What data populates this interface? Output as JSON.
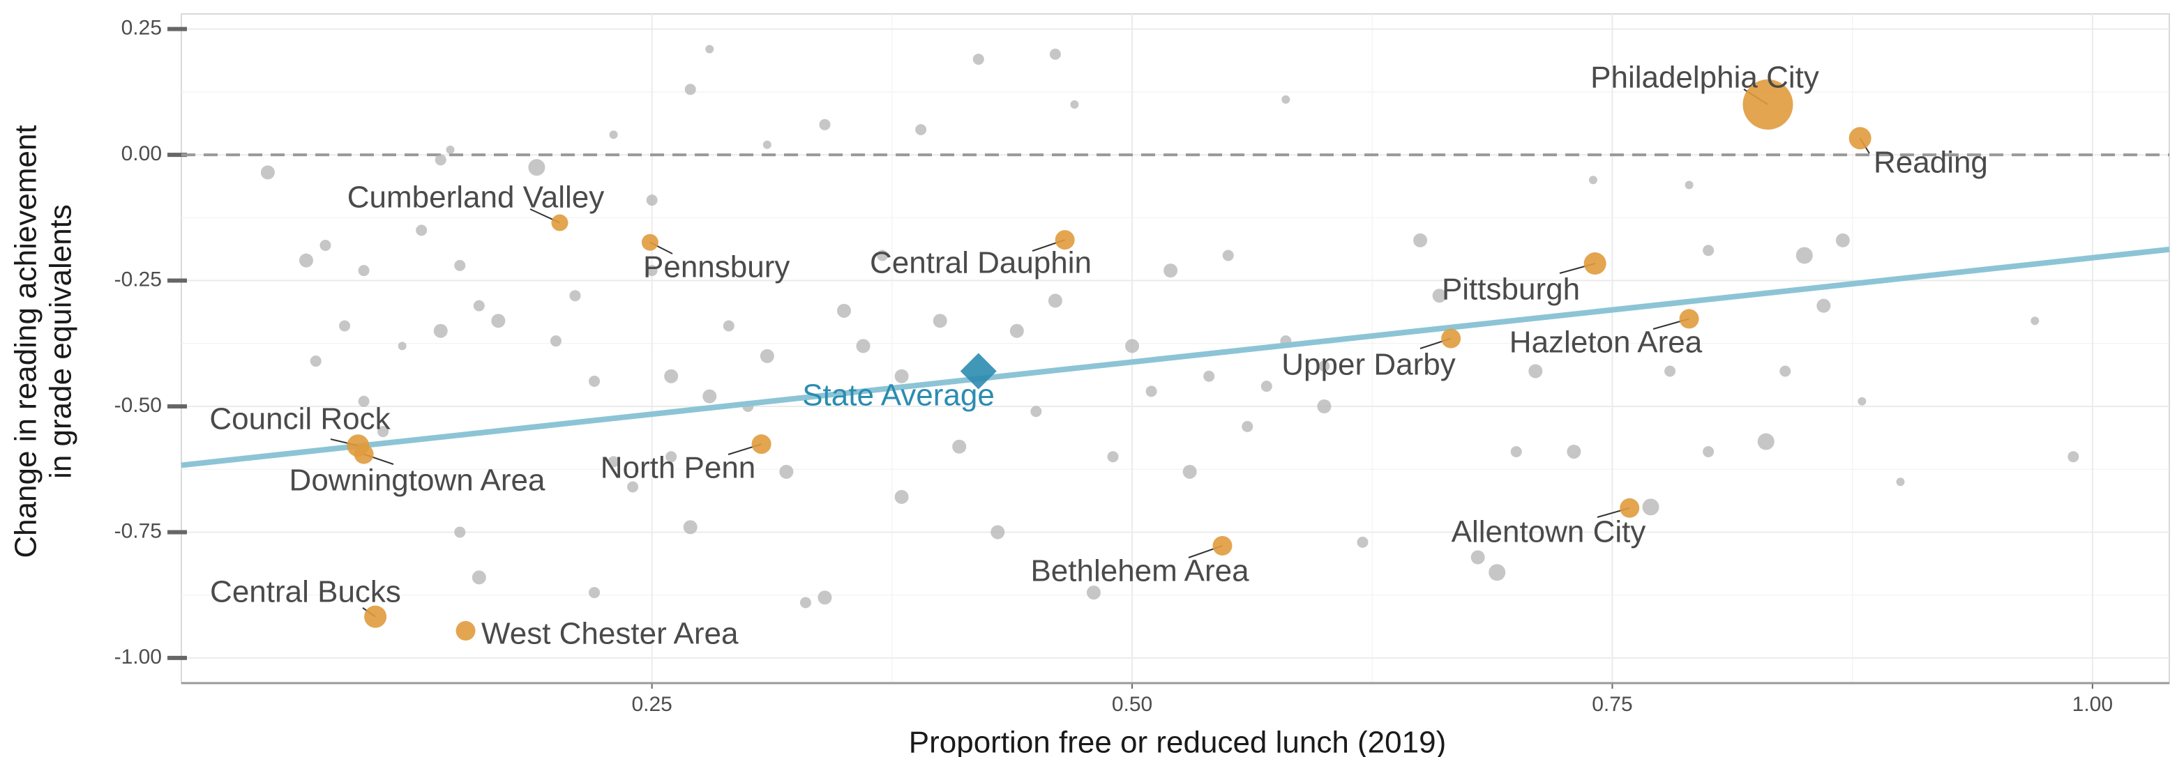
{
  "chart_data": {
    "type": "scatter",
    "xlabel": "Proportion free or reduced lunch (2019)",
    "ylabel": [
      "Change in reading  achievement",
      "in grade equivalents"
    ],
    "xlim": [
      0.005,
      1.04
    ],
    "ylim": [
      -1.05,
      0.28
    ],
    "xticks": [
      {
        "value": 0.25,
        "label": "0.25"
      },
      {
        "value": 0.5,
        "label": "0.50"
      },
      {
        "value": 0.75,
        "label": "0.75"
      },
      {
        "value": 1,
        "label": "1.00"
      }
    ],
    "yticks": [
      {
        "value": 0.25,
        "label": "0.25"
      },
      {
        "value": 0,
        "label": "0.00"
      },
      {
        "value": -0.25,
        "label": "-0.25"
      },
      {
        "value": -0.5,
        "label": "-0.50"
      },
      {
        "value": -0.75,
        "label": "-0.75"
      },
      {
        "value": -1,
        "label": "-1.00"
      }
    ],
    "grid": true,
    "reference_line": 0,
    "trend": {
      "color": "#8cc4d6",
      "x": [
        0.005,
        1.04
      ],
      "values": [
        -0.617,
        -0.188
      ]
    },
    "state_average": {
      "name": "State Average",
      "color": "#2b8cb0",
      "x": 0.42,
      "value": -0.43
    },
    "series": [
      {
        "color": "#b3b3b3",
        "x": [
          0.05,
          0.07,
          0.08,
          0.075,
          0.09,
          0.1,
          0.1,
          0.11,
          0.12,
          0.13,
          0.14,
          0.14,
          0.145,
          0.15,
          0.16,
          0.17,
          0.16,
          0.15,
          0.19,
          0.2,
          0.21,
          0.22,
          0.23,
          0.24,
          0.22,
          0.23,
          0.25,
          0.25,
          0.26,
          0.26,
          0.27,
          0.27,
          0.28,
          0.28,
          0.29,
          0.3,
          0.31,
          0.31,
          0.32,
          0.33,
          0.34,
          0.34,
          0.35,
          0.36,
          0.37,
          0.38,
          0.38,
          0.39,
          0.4,
          0.41,
          0.42,
          0.43,
          0.44,
          0.45,
          0.46,
          0.46,
          0.47,
          0.48,
          0.49,
          0.5,
          0.51,
          0.52,
          0.53,
          0.54,
          0.55,
          0.56,
          0.57,
          0.58,
          0.58,
          0.6,
          0.6,
          0.62,
          0.65,
          0.66,
          0.68,
          0.69,
          0.7,
          0.71,
          0.73,
          0.74,
          0.77,
          0.78,
          0.79,
          0.8,
          0.8,
          0.83,
          0.84,
          0.85,
          0.86,
          0.87,
          0.88,
          0.9,
          0.97,
          0.99
        ],
        "values": [
          -0.035,
          -0.21,
          -0.18,
          -0.41,
          -0.34,
          -0.23,
          -0.49,
          -0.55,
          -0.38,
          -0.15,
          -0.35,
          -0.01,
          0.01,
          -0.22,
          -0.3,
          -0.33,
          -0.84,
          -0.75,
          -0.025,
          -0.37,
          -0.28,
          -0.45,
          -0.61,
          -0.66,
          -0.87,
          0.04,
          -0.09,
          -0.23,
          -0.44,
          -0.6,
          -0.74,
          0.13,
          0.21,
          -0.48,
          -0.34,
          -0.5,
          0.02,
          -0.4,
          -0.63,
          -0.89,
          -0.88,
          0.06,
          -0.31,
          -0.38,
          -0.2,
          -0.44,
          -0.68,
          0.05,
          -0.33,
          -0.58,
          0.19,
          -0.75,
          -0.35,
          -0.51,
          -0.29,
          0.2,
          0.1,
          -0.87,
          -0.6,
          -0.38,
          -0.47,
          -0.23,
          -0.63,
          -0.44,
          -0.2,
          -0.54,
          -0.46,
          -0.37,
          0.11,
          -0.42,
          -0.5,
          -0.77,
          -0.17,
          -0.28,
          -0.8,
          -0.83,
          -0.59,
          -0.43,
          -0.59,
          -0.05,
          -0.7,
          -0.43,
          -0.06,
          -0.19,
          -0.59,
          -0.57,
          -0.43,
          -0.2,
          -0.3,
          -0.17,
          -0.49,
          -0.65,
          -0.33,
          -0.6
        ],
        "sizes": [
          5,
          5,
          4,
          4,
          4,
          4,
          4,
          4,
          3,
          4,
          5,
          4,
          3,
          4,
          4,
          5,
          5,
          4,
          6,
          4,
          4,
          4,
          4,
          4,
          4,
          3,
          4,
          4,
          5,
          4,
          5,
          4,
          3,
          5,
          4,
          4,
          3,
          5,
          5,
          4,
          5,
          4,
          5,
          5,
          4,
          5,
          5,
          4,
          5,
          5,
          4,
          5,
          5,
          4,
          5,
          4,
          3,
          5,
          4,
          5,
          4,
          5,
          5,
          4,
          4,
          4,
          4,
          4,
          3,
          4,
          5,
          4,
          5,
          5,
          5,
          6,
          4,
          5,
          5,
          3,
          6,
          4,
          3,
          4,
          4,
          6,
          4,
          6,
          5,
          5,
          3,
          3,
          3,
          4
        ]
      },
      {
        "color": "#e09b3d",
        "labels": [
          "Philadelphia City",
          "Reading",
          "Cumberland Valley",
          "Pennsbury",
          "Central Dauphin",
          "Pittsburgh",
          "Hazleton Area",
          "Upper Darby",
          "Council Rock",
          "Downingtown Area",
          "North Penn",
          "Allentown City",
          "Bethlehem Area",
          "Central Bucks",
          "West Chester Area"
        ],
        "x": [
          0.831,
          0.879,
          0.202,
          0.249,
          0.465,
          0.741,
          0.79,
          0.666,
          0.097,
          0.1,
          0.307,
          0.759,
          0.547,
          0.106,
          0.153
        ],
        "values": [
          0.1,
          0.033,
          -0.135,
          -0.174,
          -0.169,
          -0.216,
          -0.326,
          -0.365,
          -0.578,
          -0.595,
          -0.575,
          -0.702,
          -0.777,
          -0.918,
          -0.946
        ],
        "sizes": [
          18,
          8,
          6,
          6,
          7,
          8,
          7,
          7,
          8,
          7,
          7,
          7,
          7,
          8,
          7
        ]
      }
    ]
  }
}
